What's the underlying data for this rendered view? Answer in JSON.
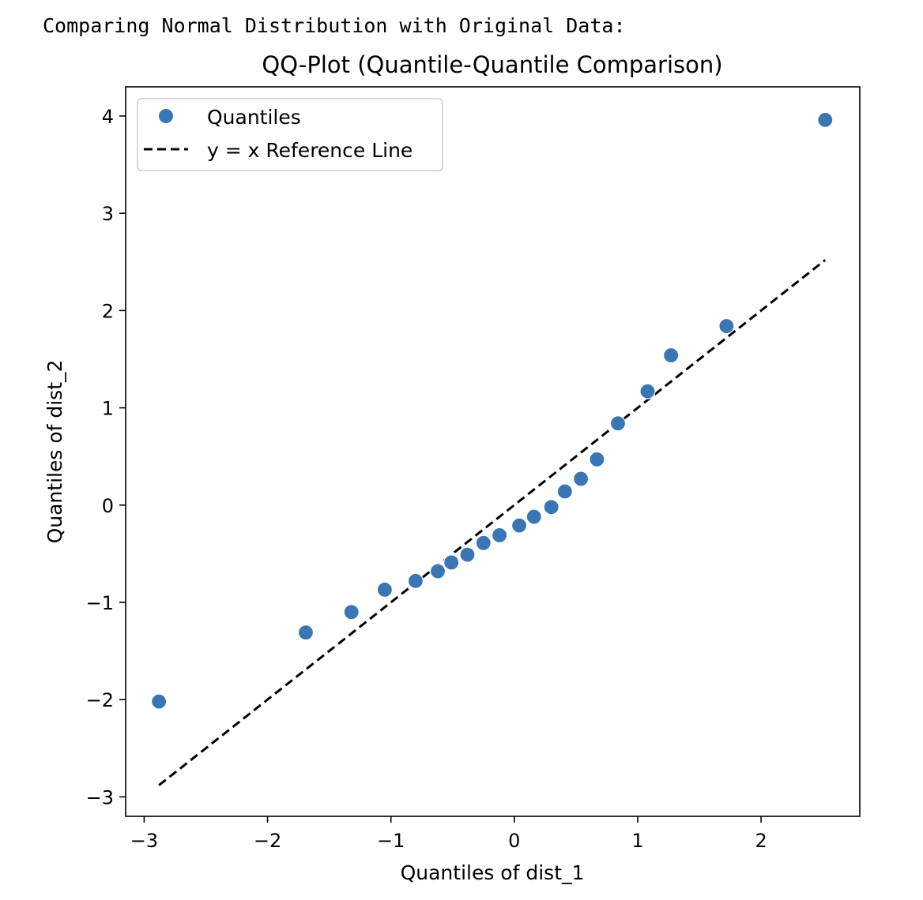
{
  "output": {
    "caption": "Comparing Normal Distribution with Original Data:"
  },
  "colors": {
    "marker": "#3a75b4",
    "reference_line": "#000000",
    "frame": "#000000",
    "legend_border": "#cccccc"
  },
  "chart_data": {
    "type": "scatter",
    "title": "QQ-Plot (Quantile-Quantile Comparison)",
    "xlabel": "Quantiles of dist_1",
    "ylabel": "Quantiles of dist_2",
    "xlim": [
      -3.15,
      2.8
    ],
    "ylim": [
      -3.2,
      4.3
    ],
    "xticks": [
      {
        "value": -3,
        "label": "−3"
      },
      {
        "value": -2,
        "label": "−2"
      },
      {
        "value": -1,
        "label": "−1"
      },
      {
        "value": 0,
        "label": "0"
      },
      {
        "value": 1,
        "label": "1"
      },
      {
        "value": 2,
        "label": "2"
      }
    ],
    "yticks": [
      {
        "value": -3,
        "label": "−3"
      },
      {
        "value": -2,
        "label": "−2"
      },
      {
        "value": -1,
        "label": "−1"
      },
      {
        "value": 0,
        "label": "0"
      },
      {
        "value": 1,
        "label": "1"
      },
      {
        "value": 2,
        "label": "2"
      },
      {
        "value": 3,
        "label": "3"
      },
      {
        "value": 4,
        "label": "4"
      }
    ],
    "grid": false,
    "legend_position": "top-left",
    "legend": [
      {
        "label": "Quantiles",
        "kind": "marker"
      },
      {
        "label": "y = x Reference Line",
        "kind": "dashed-line"
      }
    ],
    "series": [
      {
        "name": "Quantiles",
        "kind": "scatter",
        "x": [
          -2.88,
          -1.69,
          -1.32,
          -1.05,
          -0.8,
          -0.62,
          -0.51,
          -0.38,
          -0.25,
          -0.12,
          0.04,
          0.16,
          0.3,
          0.41,
          0.54,
          0.67,
          0.84,
          1.08,
          1.27,
          1.72,
          2.52
        ],
        "y": [
          -2.02,
          -1.31,
          -1.1,
          -0.87,
          -0.78,
          -0.68,
          -0.59,
          -0.51,
          -0.39,
          -0.31,
          -0.21,
          -0.12,
          -0.02,
          0.14,
          0.27,
          0.47,
          0.84,
          1.17,
          1.54,
          1.84,
          3.96
        ]
      },
      {
        "name": "y = x Reference Line",
        "kind": "line",
        "style": "dashed",
        "x": [
          -2.88,
          2.52
        ],
        "y": [
          -2.88,
          2.52
        ]
      }
    ]
  }
}
